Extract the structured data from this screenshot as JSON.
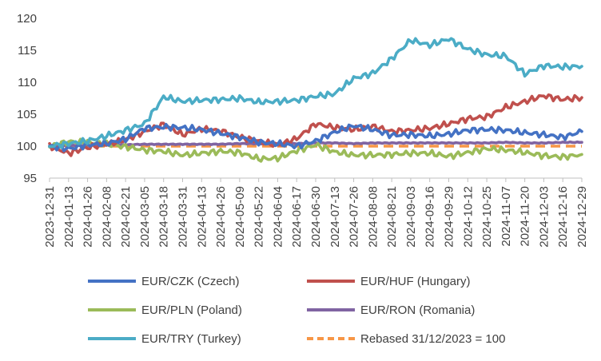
{
  "chart_data": {
    "type": "line",
    "title": "",
    "xlabel": "",
    "ylabel": "",
    "ylim": [
      95,
      120
    ],
    "yticks": [
      95,
      100,
      105,
      110,
      115,
      120
    ],
    "grid": false,
    "legend_position": "bottom",
    "x_tick_labels": [
      "2023-12-31",
      "2024-01-13",
      "2024-01-26",
      "2024-02-08",
      "2024-02-21",
      "2024-03-05",
      "2024-03-18",
      "2024-03-31",
      "2024-04-13",
      "2024-04-26",
      "2024-05-09",
      "2024-05-22",
      "2024-06-04",
      "2024-06-17",
      "2024-06-30",
      "2024-07-13",
      "2024-07-26",
      "2024-08-08",
      "2024-08-21",
      "2024-09-03",
      "2024-09-16",
      "2024-09-29",
      "2024-10-12",
      "2024-10-25",
      "2024-11-07",
      "2024-11-20",
      "2024-12-03",
      "2024-12-16",
      "2024-12-29"
    ],
    "series": [
      {
        "name": "EUR/CZK (Czech)",
        "color": "#4472c4",
        "dash": "solid",
        "values": [
          100.0,
          99.6,
          100.2,
          100.4,
          101.1,
          102.8,
          103.0,
          102.9,
          102.6,
          102.0,
          101.4,
          100.6,
          100.4,
          100.0,
          100.8,
          102.2,
          103.2,
          102.6,
          101.7,
          101.8,
          101.6,
          101.9,
          102.5,
          102.6,
          102.5,
          102.1,
          101.8,
          101.4,
          102.3
        ]
      },
      {
        "name": "EUR/HUF (Hungary)",
        "color": "#c0504d",
        "dash": "solid",
        "values": [
          100.0,
          98.9,
          99.8,
          100.3,
          101.0,
          102.3,
          103.4,
          101.8,
          102.7,
          102.4,
          101.4,
          100.8,
          100.1,
          101.2,
          103.5,
          102.9,
          102.6,
          103.1,
          102.3,
          102.5,
          102.8,
          103.5,
          104.3,
          104.6,
          106.1,
          107.0,
          107.9,
          107.3,
          107.6
        ]
      },
      {
        "name": "EUR/PLN (Poland)",
        "color": "#9bbb59",
        "dash": "solid",
        "values": [
          100.0,
          100.7,
          100.6,
          100.3,
          99.9,
          99.4,
          99.2,
          98.6,
          98.9,
          99.2,
          99.0,
          98.0,
          98.1,
          99.3,
          100.2,
          99.1,
          98.6,
          98.6,
          98.7,
          98.9,
          98.9,
          98.4,
          99.0,
          99.6,
          99.4,
          99.0,
          98.5,
          98.3,
          98.7
        ]
      },
      {
        "name": "EUR/RON (Romania)",
        "color": "#8064a2",
        "dash": "solid",
        "values": [
          100.0,
          100.1,
          100.1,
          100.2,
          100.2,
          100.3,
          100.3,
          100.3,
          100.3,
          100.3,
          100.4,
          100.4,
          100.4,
          100.4,
          100.5,
          100.5,
          100.4,
          100.5,
          100.5,
          100.5,
          100.5,
          100.5,
          100.5,
          100.5,
          100.6,
          100.5,
          100.5,
          100.6,
          100.6
        ]
      },
      {
        "name": "EUR/TRY (Turkey)",
        "color": "#4bacc6",
        "dash": "solid",
        "values": [
          100.0,
          100.4,
          100.8,
          101.6,
          102.5,
          103.5,
          107.7,
          107.0,
          107.2,
          107.3,
          107.5,
          106.9,
          107.0,
          107.2,
          107.8,
          108.2,
          110.6,
          111.4,
          113.7,
          116.6,
          115.8,
          116.8,
          115.2,
          114.3,
          114.1,
          111.3,
          112.6,
          112.4,
          112.5
        ]
      },
      {
        "name": "Rebased 31/12/2023 = 100",
        "color": "#f79646",
        "dash": "dashed",
        "values": [
          100,
          100,
          100,
          100,
          100,
          100,
          100,
          100,
          100,
          100,
          100,
          100,
          100,
          100,
          100,
          100,
          100,
          100,
          100,
          100,
          100,
          100,
          100,
          100,
          100,
          100,
          100,
          100,
          100
        ]
      }
    ]
  }
}
